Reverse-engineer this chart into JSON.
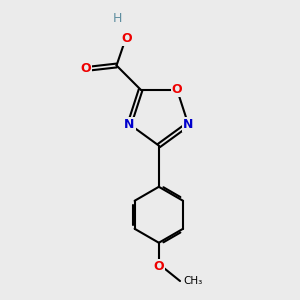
{
  "background_color": "#ebebeb",
  "bond_color": "#000000",
  "N_color": "#0000cc",
  "O_color": "#ee0000",
  "H_color": "#5f8ea0",
  "figsize": [
    3.0,
    3.0
  ],
  "dpi": 100,
  "xlim": [
    0,
    10
  ],
  "ylim": [
    0,
    10
  ]
}
